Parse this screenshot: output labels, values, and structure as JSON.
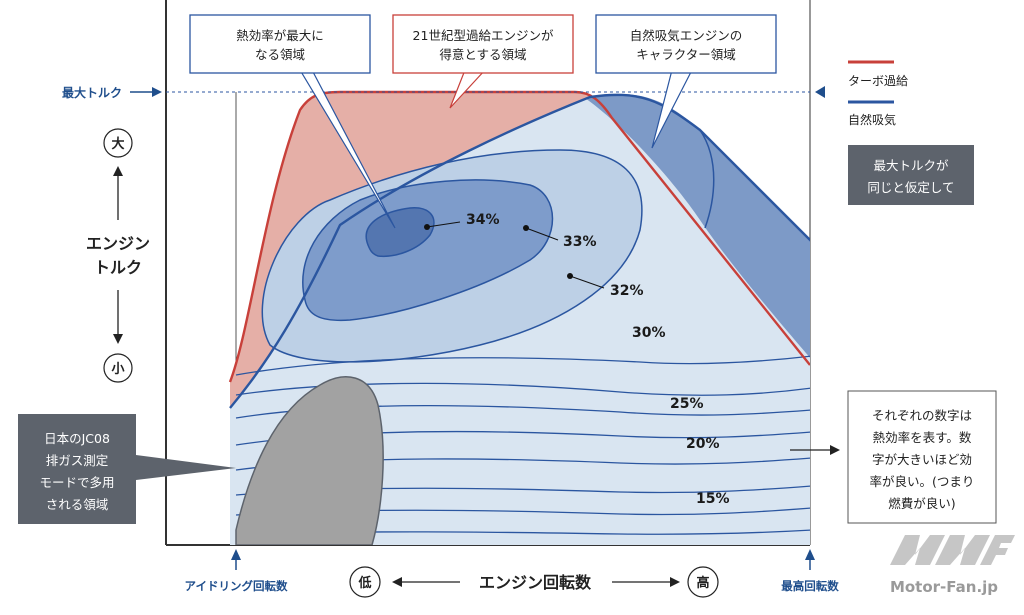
{
  "callouts": {
    "max_efficiency": [
      "熱効率が最大に",
      "なる領域"
    ],
    "turbo_21c": [
      "21世紀型過給エンジンが",
      "得意とする領域"
    ],
    "na_character": [
      "自然吸気エンジンの",
      "キャラクター領域"
    ]
  },
  "axis": {
    "max_torque": "最大トルク",
    "y_label": [
      "エンジン",
      "トルク"
    ],
    "y_high": "大",
    "y_low": "小",
    "x_label": "エンジン回転数",
    "x_low": "低",
    "x_high": "高",
    "idle": "アイドリング回転数",
    "max_rpm": "最高回転数"
  },
  "legend": {
    "turbo": "ターボ過給",
    "turbo_color": "#c8403a",
    "na": "自然吸気",
    "na_color": "#2b56a0"
  },
  "notes": {
    "assumption": [
      "最大トルクが",
      "同じと仮定して"
    ],
    "explanation": [
      "それぞれの数字は",
      "熱効率を表す。数",
      "字が大きいほど効",
      "率が良い。(つまり",
      "燃費が良い)"
    ],
    "jc08": [
      "日本のJC08",
      "排ガス測定",
      "モードで多用",
      "される領域"
    ]
  },
  "efficiency_labels": [
    "34%",
    "33%",
    "32%",
    "30%",
    "25%",
    "20%",
    "15%"
  ],
  "watermark": "Motor-Fan.jp",
  "colors": {
    "turbo_fill": "#e5afa7",
    "na_fill": "#d9e5f1",
    "zone_32": "#a6bcd8",
    "zone_33": "#7e9ccb",
    "zone_34": "#5476b0",
    "na_top_fill": "#7d9ac7",
    "jc08_fill": "#a2a2a2",
    "note_dark": "#5d636c"
  }
}
